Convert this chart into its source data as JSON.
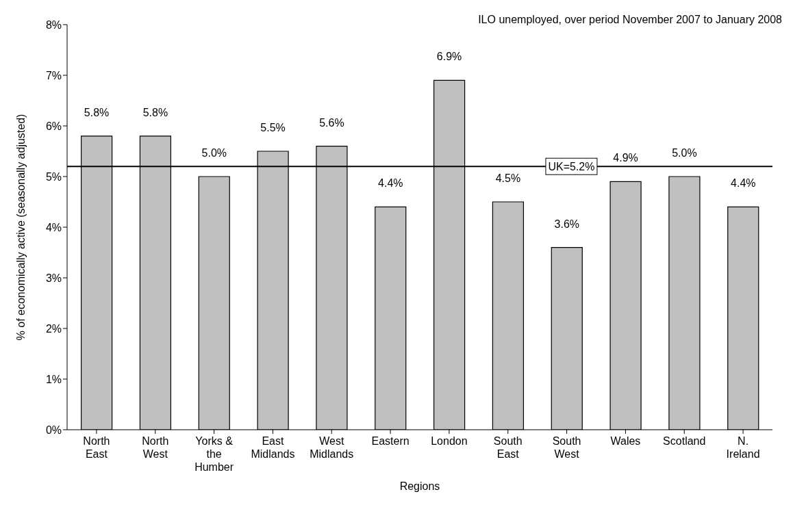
{
  "chart_data": {
    "type": "bar",
    "xlabel": "Regions",
    "ylabel": "% of economically active (seasonally adjusted)",
    "annotations": [
      "ILO unemployed, over period November 2007 to January 2008"
    ],
    "categories": [
      "North East",
      "North West",
      "Yorks & the Humber",
      "East Midlands",
      "West Midlands",
      "Eastern",
      "London",
      "South East",
      "South West",
      "Wales",
      "Scotland",
      "N. Ireland"
    ],
    "values": [
      5.8,
      5.8,
      5.0,
      5.5,
      5.6,
      4.4,
      6.9,
      4.5,
      3.6,
      4.9,
      5.0,
      4.4
    ],
    "value_labels": [
      "5.8%",
      "5.8%",
      "5.0%",
      "5.5%",
      "5.6%",
      "4.4%",
      "6.9%",
      "4.5%",
      "3.6%",
      "4.9%",
      "5.0%",
      "4.4%"
    ],
    "color": "#c0c0c0",
    "ylim": [
      0,
      8
    ],
    "yticks": [
      {
        "value": 0,
        "label": "0%"
      },
      {
        "value": 1,
        "label": "1%"
      },
      {
        "value": 2,
        "label": "2%"
      },
      {
        "value": 3,
        "label": "3%"
      },
      {
        "value": 4,
        "label": "4%"
      },
      {
        "value": 5,
        "label": "5%"
      },
      {
        "value": 6,
        "label": "6%"
      },
      {
        "value": 7,
        "label": "7%"
      },
      {
        "value": 8,
        "label": "8%"
      }
    ],
    "ref_lines": [
      {
        "axis": "y",
        "value": 5.2,
        "label": "UK=5.2%",
        "color": "#000000"
      }
    ],
    "grid": false,
    "legend": false
  }
}
